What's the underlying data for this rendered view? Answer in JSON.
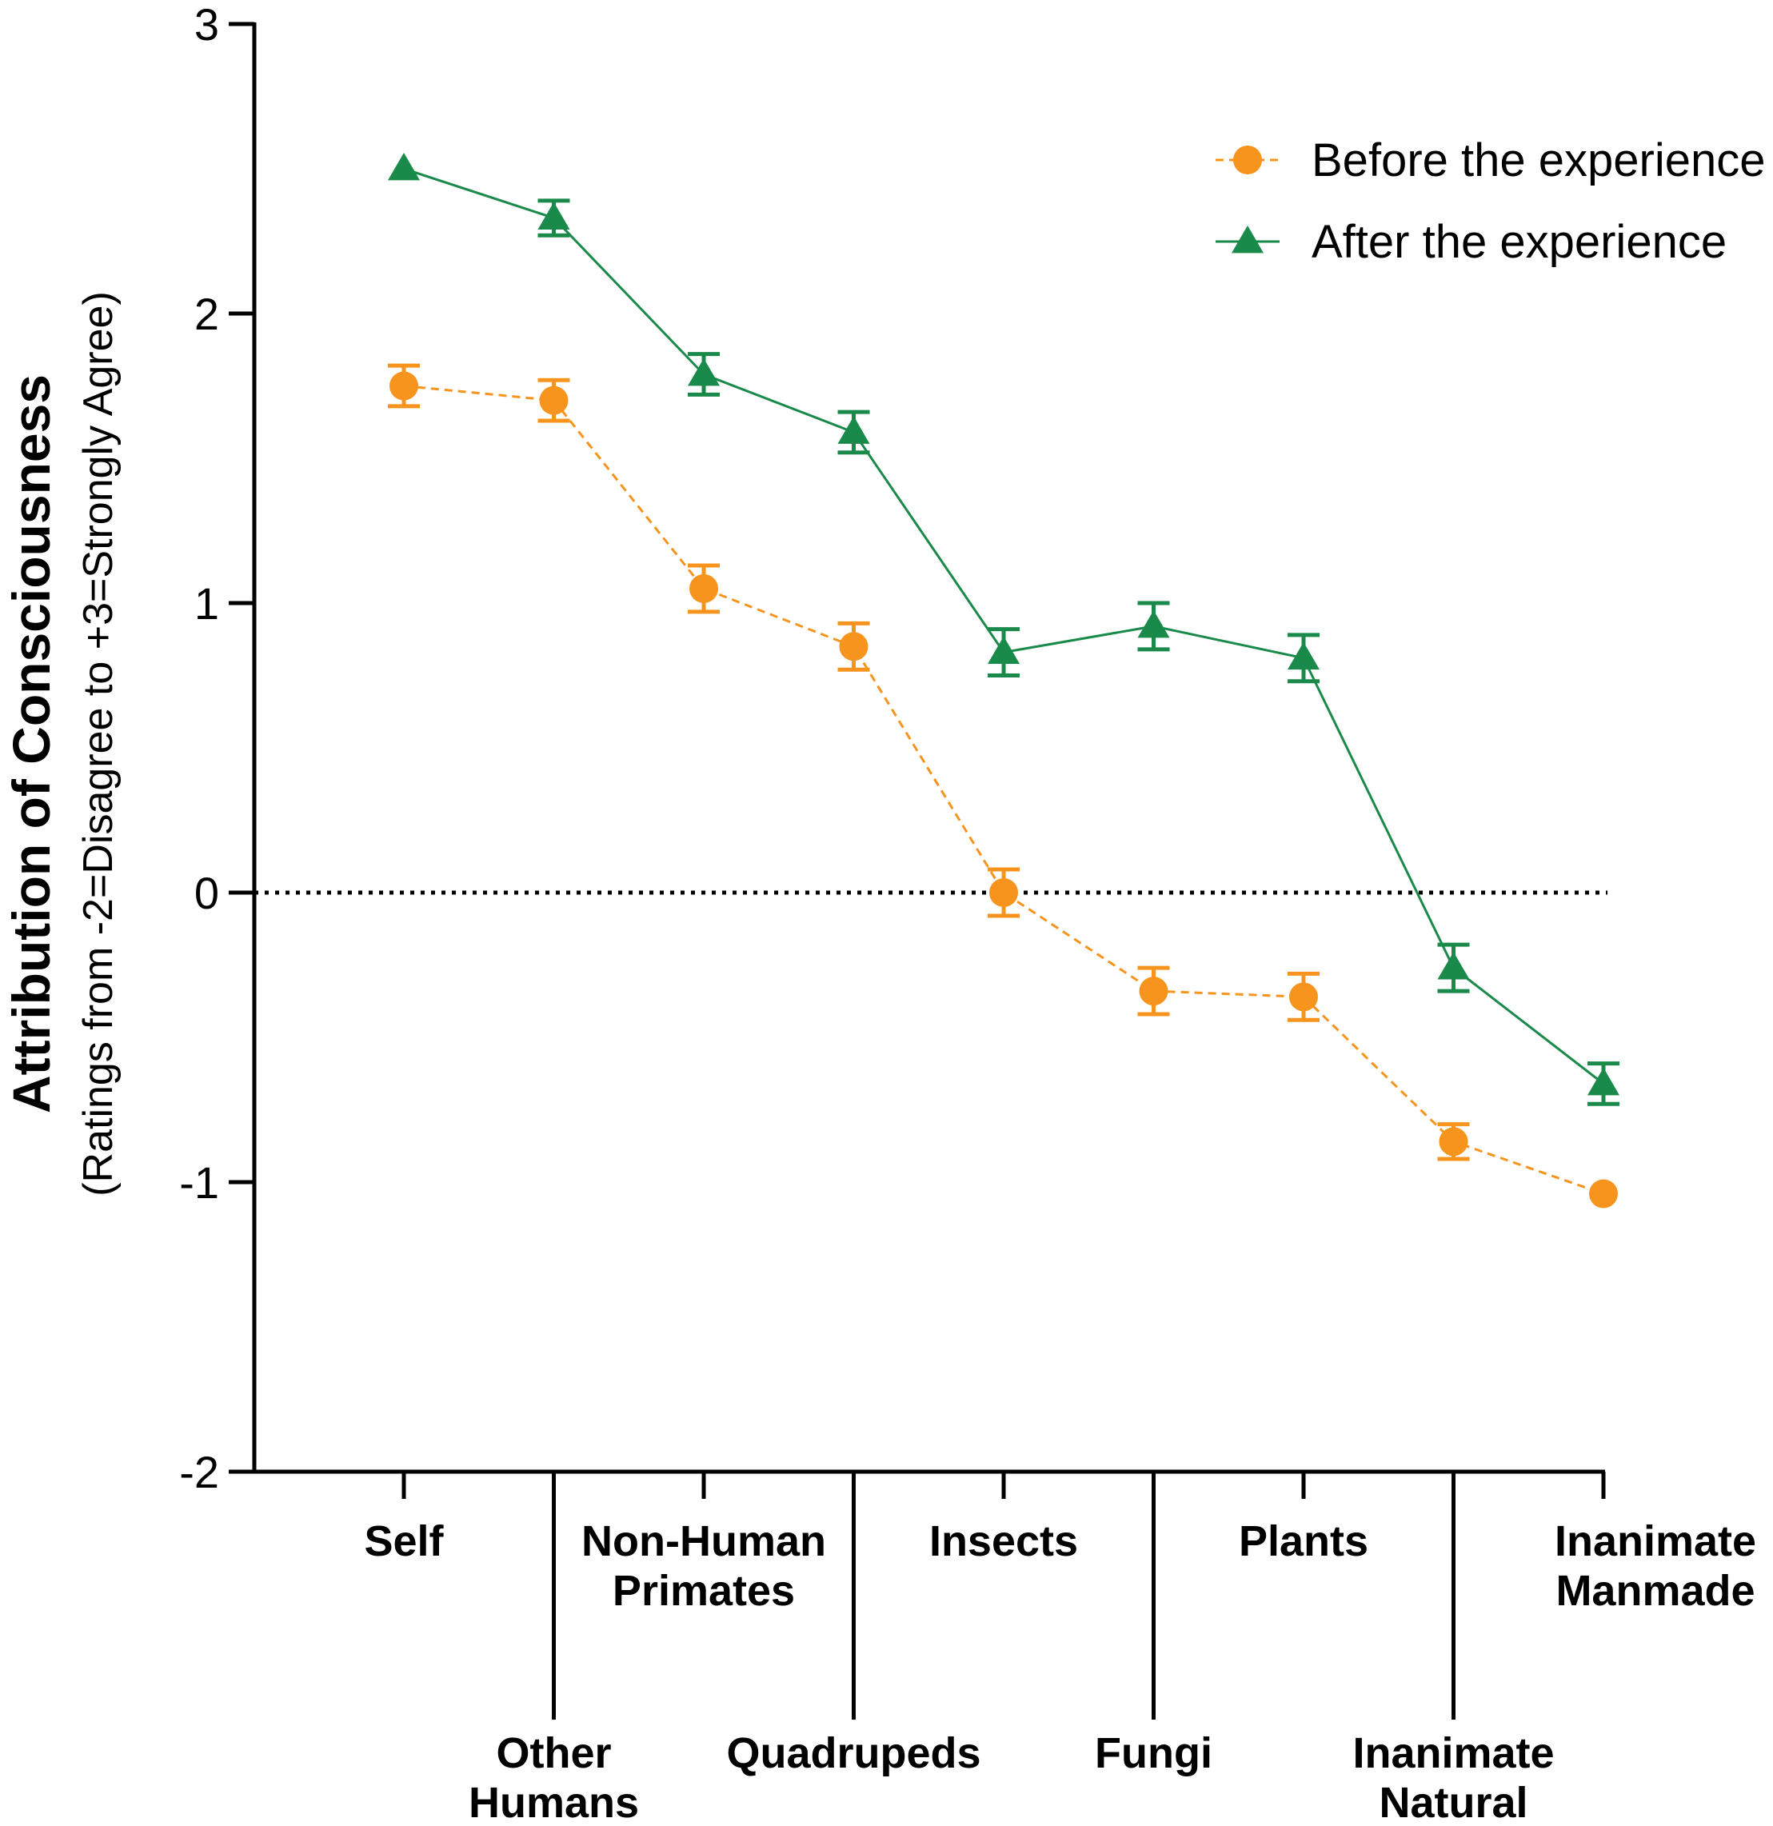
{
  "chart_data": {
    "type": "line",
    "title": "",
    "ylabel": "Attribution of Consciousness",
    "ylabel_sub": "(Ratings from -2=Disagree to +3=Strongly Agree)",
    "xlabel": "",
    "ylim": [
      -2,
      3
    ],
    "yticks": [
      -2,
      -1,
      0,
      1,
      2,
      3
    ],
    "ytick_labels": [
      "-2",
      "-1",
      "0",
      "1",
      "2",
      "3"
    ],
    "reference_line": 0,
    "legend_position": "top-right",
    "categories": [
      [
        "Self"
      ],
      [
        "Other",
        "Humans"
      ],
      [
        "Non-Human",
        "Primates"
      ],
      [
        "Quadrupeds"
      ],
      [
        "Insects"
      ],
      [
        "Fungi"
      ],
      [
        "Plants"
      ],
      [
        "Inanimate",
        "Natural"
      ],
      [
        "Inanimate",
        "Manmade"
      ]
    ],
    "series": [
      {
        "name": "Before the experience",
        "color": "#f7941d",
        "marker": "circle",
        "line_style": "dashed",
        "values": [
          1.75,
          1.7,
          1.05,
          0.85,
          0.0,
          -0.34,
          -0.36,
          -0.86,
          -1.04
        ],
        "errors": [
          0.07,
          0.07,
          0.08,
          0.08,
          0.08,
          0.08,
          0.08,
          0.06,
          0.03
        ]
      },
      {
        "name": "After the experience",
        "color": "#1a8a4a",
        "marker": "triangle",
        "line_style": "solid",
        "values": [
          2.5,
          2.33,
          1.79,
          1.59,
          0.83,
          0.92,
          0.81,
          -0.26,
          -0.66
        ],
        "errors": [
          0.03,
          0.06,
          0.07,
          0.07,
          0.08,
          0.08,
          0.08,
          0.08,
          0.07
        ]
      }
    ]
  }
}
